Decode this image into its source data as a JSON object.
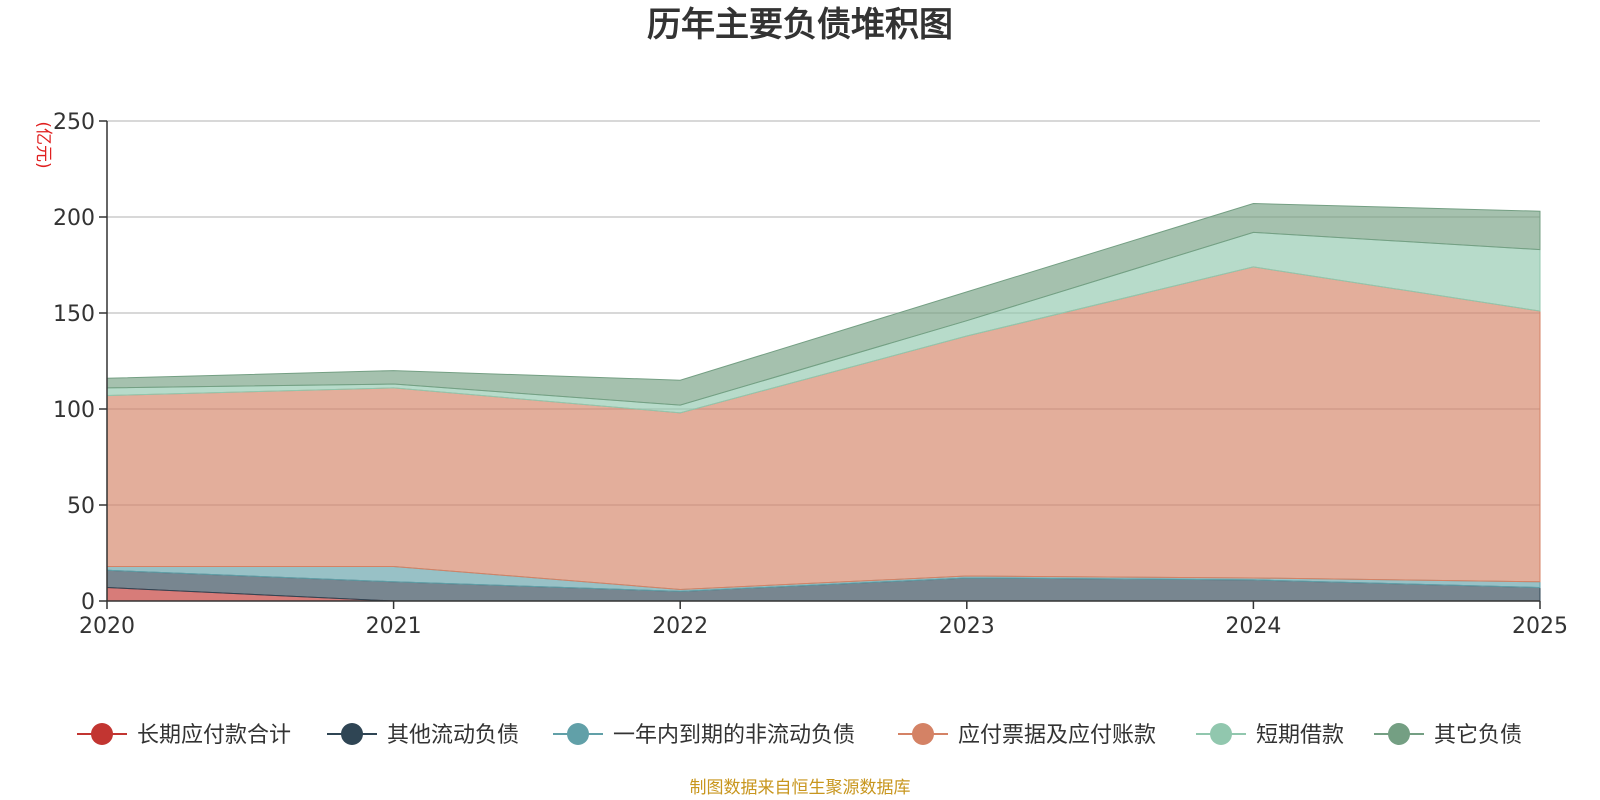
{
  "chart_data": {
    "type": "area",
    "stacked": true,
    "title": "历年主要负债堆积图",
    "unit_label": "(亿元)",
    "x": [
      "2020",
      "2021",
      "2022",
      "2023",
      "2024",
      "2025"
    ],
    "ylim": [
      0,
      250
    ],
    "yticks": [
      0,
      50,
      100,
      150,
      200,
      250
    ],
    "grid": true,
    "legend_position": "bottom",
    "series": [
      {
        "name": "长期应付款合计",
        "color": "#c23531",
        "values": [
          7,
          0,
          0,
          0,
          0,
          0
        ]
      },
      {
        "name": "其他流动负债",
        "color": "#2f4554",
        "values": [
          9,
          10,
          5,
          12,
          11,
          7
        ]
      },
      {
        "name": "一年内到期的非流动负债",
        "color": "#61a0a8",
        "values": [
          2,
          8,
          1,
          1,
          1,
          3
        ]
      },
      {
        "name": "应付票据及应付账款",
        "color": "#d48265",
        "values": [
          89,
          93,
          92,
          125,
          162,
          141
        ]
      },
      {
        "name": "短期借款",
        "color": "#91c7ae",
        "values": [
          4,
          2,
          4,
          8,
          18,
          32
        ]
      },
      {
        "name": "其它负债",
        "color": "#749f83",
        "values": [
          5,
          7,
          13,
          15,
          15,
          20
        ]
      }
    ]
  },
  "footer": {
    "source": "制图数据来自恒生聚源数据库"
  }
}
